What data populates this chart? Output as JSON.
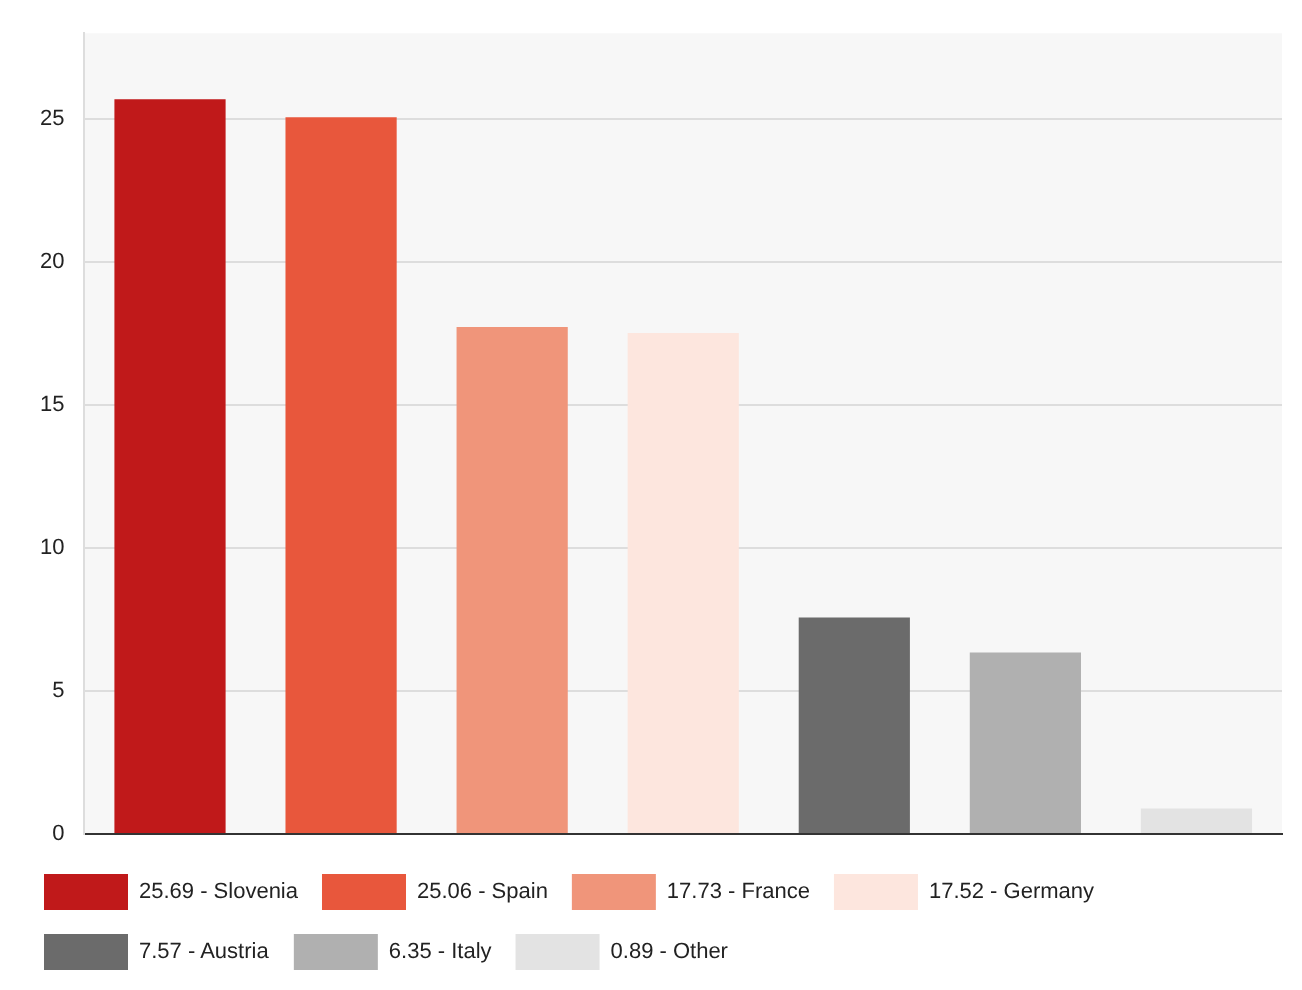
{
  "chart_data": {
    "type": "bar",
    "categories": [
      null,
      null,
      null,
      null,
      null,
      null,
      null
    ],
    "series": [
      {
        "name": "25.69 - Slovenia",
        "color": "#c0191a",
        "values": [
          25.69,
          null,
          null,
          null,
          null,
          null,
          null
        ]
      },
      {
        "name": "25.06 - Spain",
        "color": "#e8573c",
        "values": [
          null,
          25.06,
          null,
          null,
          null,
          null,
          null
        ]
      },
      {
        "name": "17.73 - France",
        "color": "#f0957a",
        "values": [
          null,
          null,
          17.73,
          null,
          null,
          null,
          null
        ]
      },
      {
        "name": "17.52 - Germany",
        "color": "#fde6de",
        "values": [
          null,
          null,
          null,
          17.52,
          null,
          null,
          null
        ]
      },
      {
        "name": "7.57 - Austria",
        "color": "#6b6b6b",
        "values": [
          null,
          null,
          null,
          null,
          7.57,
          null,
          null
        ]
      },
      {
        "name": "6.35 - Italy",
        "color": "#b0b0b0",
        "values": [
          null,
          null,
          null,
          null,
          null,
          6.35,
          null
        ]
      },
      {
        "name": "0.89 - Other",
        "color": "#e3e3e3",
        "values": [
          null,
          null,
          null,
          null,
          null,
          null,
          0.89
        ]
      }
    ],
    "ylim": [
      0,
      28
    ],
    "yticks": [
      0,
      5,
      10,
      15,
      20,
      25
    ],
    "grid": "y",
    "legend": "bottom",
    "tick_labels": "y"
  }
}
